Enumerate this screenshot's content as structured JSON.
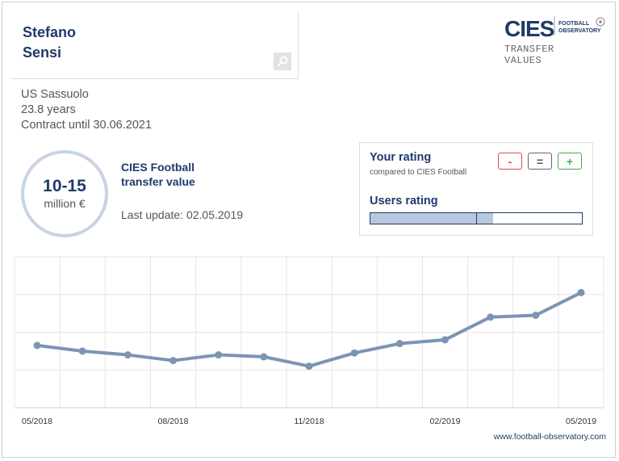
{
  "player": {
    "first_name": "Stefano",
    "last_name": "Sensi",
    "club": "US Sassuolo",
    "age": "23.8 years",
    "contract": "Contract until 30.06.2021"
  },
  "logo": {
    "brand": "CIES",
    "sub_line1": "FOOTBALL",
    "sub_line2": "OBSERVATORY",
    "caption_line1": "TRANSFER",
    "caption_line2": "VALUES"
  },
  "valuation": {
    "range": "10-15",
    "unit": "million €",
    "label_line1": "CIES Football",
    "label_line2": "transfer value",
    "last_update": "Last update: 02.05.2019"
  },
  "rating": {
    "your_rating": "Your rating",
    "compared": "compared to CIES Football",
    "minus": "-",
    "equal": "=",
    "plus": "+",
    "users_rating": "Users rating",
    "users_fill_fraction": 0.58,
    "users_marker_fraction": 0.5,
    "colors": {
      "minus": "#d24b4b",
      "equal": "#666666",
      "plus": "#4aa84a",
      "fill": "#b8c8dc",
      "accent": "#1f3a6b"
    }
  },
  "chart_data": {
    "type": "line",
    "title": "",
    "xlabel": "",
    "ylabel": "",
    "categories": [
      "05/2018",
      "",
      "",
      "08/2018",
      "",
      "",
      "11/2018",
      "",
      "",
      "02/2019",
      "",
      "",
      "05/2019"
    ],
    "tick_labels": [
      "05/2018",
      "08/2018",
      "11/2018",
      "02/2019",
      "05/2019"
    ],
    "values": [
      3.3,
      3.0,
      2.8,
      2.5,
      2.8,
      2.7,
      2.2,
      2.9,
      3.4,
      3.6,
      4.8,
      4.9,
      6.1
    ],
    "ylim": [
      0,
      8
    ],
    "grid": true,
    "line_color": "#7c94b3"
  },
  "footer": {
    "website": "www.football-observatory.com"
  }
}
